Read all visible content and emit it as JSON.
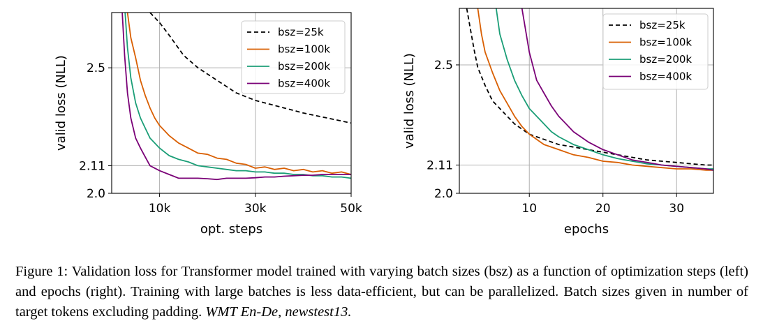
{
  "chart_data": [
    {
      "type": "line",
      "xlabel": "opt. steps",
      "ylabel": "valid loss (NLL)",
      "xlim": [
        0,
        50000
      ],
      "ylim": [
        2.0,
        2.72
      ],
      "xticks": [
        10000,
        30000,
        50000
      ],
      "xtick_labels": [
        "10k",
        "30k",
        "50k"
      ],
      "yticks": [
        2.0,
        2.11,
        2.5
      ],
      "ytick_labels": [
        "2.0",
        "2.11",
        "2.5"
      ],
      "grid": true,
      "legend_loc": "upper right",
      "series": [
        {
          "name": "bsz=25k",
          "color": "#000000",
          "dash": "dashed",
          "x": [
            8000,
            10000,
            12000,
            15000,
            18000,
            22000,
            26000,
            30000,
            35000,
            40000,
            45000,
            50000
          ],
          "y": [
            2.72,
            2.68,
            2.63,
            2.55,
            2.5,
            2.45,
            2.4,
            2.37,
            2.345,
            2.32,
            2.3,
            2.28
          ]
        },
        {
          "name": "bsz=100k",
          "color": "#d95f02",
          "dash": "solid",
          "x": [
            3300,
            4000,
            5000,
            6000,
            7000,
            8000,
            9000,
            10000,
            12000,
            14000,
            16000,
            18000,
            20000,
            22000,
            24000,
            26000,
            28000,
            30000,
            32000,
            34000,
            36000,
            38000,
            40000,
            42000,
            44000,
            46000,
            48000,
            50000
          ],
          "y": [
            2.72,
            2.62,
            2.54,
            2.45,
            2.39,
            2.34,
            2.3,
            2.27,
            2.23,
            2.2,
            2.18,
            2.16,
            2.155,
            2.14,
            2.135,
            2.12,
            2.115,
            2.1,
            2.105,
            2.095,
            2.1,
            2.09,
            2.095,
            2.085,
            2.09,
            2.08,
            2.085,
            2.075
          ]
        },
        {
          "name": "bsz=200k",
          "color": "#1b9e77",
          "dash": "solid",
          "x": [
            2800,
            3300,
            4000,
            5000,
            6000,
            7000,
            8000,
            10000,
            12000,
            14000,
            16000,
            18000,
            20000,
            22000,
            24000,
            26000,
            28000,
            30000,
            32000,
            34000,
            36000,
            38000,
            40000,
            42000,
            44000,
            46000,
            48000,
            50000
          ],
          "y": [
            2.72,
            2.58,
            2.46,
            2.36,
            2.3,
            2.26,
            2.22,
            2.18,
            2.15,
            2.135,
            2.125,
            2.11,
            2.105,
            2.1,
            2.095,
            2.09,
            2.09,
            2.085,
            2.085,
            2.08,
            2.08,
            2.075,
            2.075,
            2.07,
            2.07,
            2.065,
            2.065,
            2.06
          ]
        },
        {
          "name": "bsz=400k",
          "color": "#7a0177",
          "dash": "solid",
          "x": [
            2200,
            2700,
            3300,
            4000,
            5000,
            6000,
            7000,
            8000,
            10000,
            12000,
            14000,
            16000,
            18000,
            20000,
            22000,
            24000,
            26000,
            28000,
            30000,
            32000,
            34000,
            36000,
            38000,
            40000,
            42000,
            44000,
            46000,
            48000,
            50000
          ],
          "y": [
            2.72,
            2.55,
            2.4,
            2.3,
            2.22,
            2.18,
            2.145,
            2.11,
            2.09,
            2.075,
            2.06,
            2.06,
            2.06,
            2.058,
            2.055,
            2.06,
            2.06,
            2.06,
            2.062,
            2.065,
            2.065,
            2.068,
            2.07,
            2.072,
            2.072,
            2.075,
            2.075,
            2.075,
            2.075
          ]
        }
      ]
    },
    {
      "type": "line",
      "xlabel": "epochs",
      "ylabel": "valid loss (NLL)",
      "xlim": [
        0.5,
        35
      ],
      "ylim": [
        2.0,
        2.72
      ],
      "xticks": [
        10,
        20,
        30
      ],
      "xtick_labels": [
        "10",
        "20",
        "30"
      ],
      "yticks": [
        2.0,
        2.11,
        2.5
      ],
      "ytick_labels": [
        "2.0",
        "2.11",
        "2.5"
      ],
      "grid": true,
      "legend_loc": "upper right",
      "series": [
        {
          "name": "bsz=25k",
          "color": "#000000",
          "dash": "dashed",
          "x": [
            1.5,
            2,
            2.5,
            3,
            4,
            5,
            6,
            7,
            8,
            9,
            10,
            12,
            14,
            16,
            18,
            20,
            22,
            24,
            26,
            28,
            30,
            32,
            34,
            35
          ],
          "y": [
            2.72,
            2.64,
            2.56,
            2.49,
            2.42,
            2.36,
            2.33,
            2.3,
            2.27,
            2.25,
            2.23,
            2.21,
            2.19,
            2.18,
            2.17,
            2.16,
            2.15,
            2.14,
            2.13,
            2.125,
            2.12,
            2.115,
            2.11,
            2.11
          ]
        },
        {
          "name": "bsz=100k",
          "color": "#d95f02",
          "dash": "solid",
          "x": [
            3,
            3.5,
            4,
            5,
            6,
            7,
            8,
            9,
            10,
            11,
            12,
            14,
            16,
            18,
            20,
            22,
            24,
            26,
            28,
            30,
            32,
            34,
            35
          ],
          "y": [
            2.72,
            2.62,
            2.55,
            2.47,
            2.4,
            2.35,
            2.3,
            2.26,
            2.23,
            2.21,
            2.19,
            2.17,
            2.15,
            2.14,
            2.125,
            2.12,
            2.11,
            2.105,
            2.1,
            2.095,
            2.095,
            2.09,
            2.09
          ]
        },
        {
          "name": "bsz=200k",
          "color": "#1b9e77",
          "dash": "solid",
          "x": [
            5.5,
            6,
            7,
            8,
            9,
            10,
            11,
            12,
            13,
            14,
            16,
            18,
            20,
            22,
            24,
            26,
            28,
            30,
            32,
            34,
            35
          ],
          "y": [
            2.72,
            2.62,
            2.52,
            2.44,
            2.38,
            2.33,
            2.3,
            2.27,
            2.24,
            2.22,
            2.19,
            2.17,
            2.15,
            2.135,
            2.125,
            2.115,
            2.11,
            2.105,
            2.1,
            2.095,
            2.095
          ]
        },
        {
          "name": "bsz=400k",
          "color": "#7a0177",
          "dash": "solid",
          "x": [
            9,
            10,
            11,
            12,
            13,
            14,
            15,
            16,
            18,
            20,
            22,
            24,
            26,
            28,
            30,
            32,
            34,
            35
          ],
          "y": [
            2.72,
            2.55,
            2.44,
            2.39,
            2.34,
            2.3,
            2.27,
            2.24,
            2.2,
            2.17,
            2.15,
            2.13,
            2.12,
            2.11,
            2.105,
            2.1,
            2.095,
            2.09
          ]
        }
      ]
    }
  ],
  "caption": {
    "prefix": "Figure 1: Validation loss for Transformer model trained with varying batch sizes (bsz) as a function of optimization steps (left) and epochs (right). Training with large batches is less data-efficient, but can be parallelized. Batch sizes given in number of target tokens excluding padding.",
    "dataset": "WMT En-De, newstest13."
  }
}
